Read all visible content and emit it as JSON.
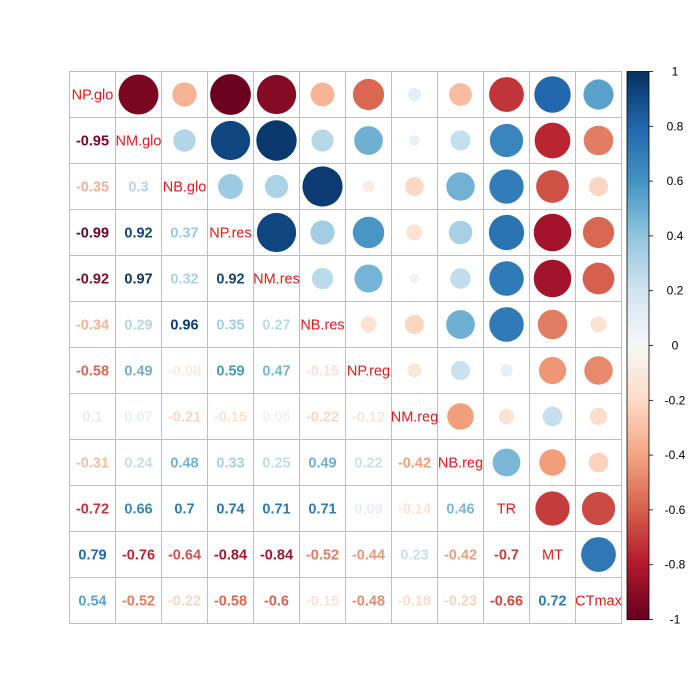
{
  "chart_data": {
    "type": "heatmap",
    "variables": [
      "NP.glo",
      "NM.glo",
      "NB.glo",
      "NP.res",
      "NM.res",
      "NB.res",
      "NP.reg",
      "NM.reg",
      "NB.reg",
      "TR",
      "MT",
      "CTmax"
    ],
    "matrix": [
      [
        1,
        -0.95,
        -0.35,
        -0.99,
        -0.92,
        -0.34,
        -0.58,
        0.1,
        -0.31,
        -0.72,
        0.79,
        0.54
      ],
      [
        -0.95,
        1,
        0.3,
        0.92,
        0.97,
        0.29,
        0.49,
        0.07,
        0.24,
        0.66,
        -0.76,
        -0.52
      ],
      [
        -0.35,
        0.3,
        1,
        0.37,
        0.32,
        0.96,
        -0.08,
        -0.21,
        0.48,
        0.7,
        -0.64,
        -0.22
      ],
      [
        -0.99,
        0.92,
        0.37,
        1,
        0.92,
        0.35,
        0.59,
        -0.15,
        0.33,
        0.74,
        -0.84,
        -0.58
      ],
      [
        -0.92,
        0.97,
        0.32,
        0.92,
        1,
        0.27,
        0.47,
        0.05,
        0.25,
        0.71,
        -0.84,
        -0.6
      ],
      [
        -0.34,
        0.29,
        0.96,
        0.35,
        0.27,
        1,
        -0.15,
        -0.22,
        0.49,
        0.71,
        -0.52,
        -0.15
      ],
      [
        -0.58,
        0.49,
        -0.08,
        0.59,
        0.47,
        -0.15,
        1,
        -0.12,
        0.22,
        0.09,
        -0.44,
        -0.48
      ],
      [
        0.1,
        0.07,
        -0.21,
        -0.15,
        0.05,
        -0.22,
        -0.12,
        1,
        -0.42,
        -0.14,
        0.23,
        -0.18
      ],
      [
        -0.31,
        0.24,
        0.48,
        0.33,
        0.25,
        0.49,
        0.22,
        -0.42,
        1,
        0.46,
        -0.42,
        -0.23
      ],
      [
        -0.72,
        0.66,
        0.7,
        0.74,
        0.71,
        0.71,
        0.09,
        -0.14,
        0.46,
        1,
        -0.7,
        -0.66
      ],
      [
        0.79,
        -0.76,
        -0.64,
        -0.84,
        -0.84,
        -0.52,
        -0.44,
        0.23,
        -0.42,
        -0.7,
        1,
        0.72
      ],
      [
        0.54,
        -0.52,
        -0.22,
        -0.58,
        -0.6,
        -0.15,
        -0.48,
        -0.18,
        -0.23,
        -0.66,
        0.72,
        1
      ]
    ],
    "lower_triangle": "number",
    "upper_triangle": "circle",
    "diagonal": "variable-name",
    "colorbar": {
      "range": [
        -1,
        1
      ],
      "ticks": [
        1,
        0.8,
        0.6,
        0.4,
        0.2,
        0,
        -0.2,
        -0.4,
        -0.6,
        -0.8,
        -1
      ],
      "tick_labels": [
        "1",
        "0.8",
        "0.6",
        "0.4",
        "0.2",
        "0",
        "-0.2",
        "-0.4",
        "-0.6",
        "-0.8",
        "-1"
      ],
      "placement": "right"
    },
    "colors": {
      "negative_end": "#67001f",
      "neutral": "#f7f7f7",
      "positive_end": "#053061",
      "grid": "#bebebe",
      "diagonal_text": "#e31a1c"
    },
    "title": "",
    "xlabel": "",
    "ylabel": ""
  }
}
